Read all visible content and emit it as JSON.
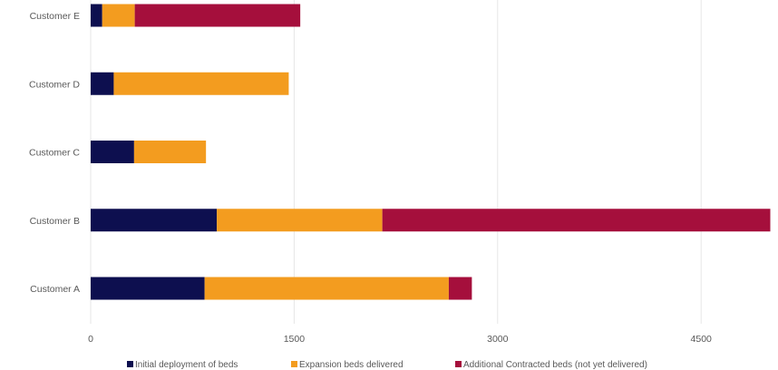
{
  "chart_data": {
    "type": "bar",
    "orientation": "horizontal",
    "stacked": true,
    "categories": [
      "Customer A",
      "Customer B",
      "Customer C",
      "Customer D",
      "Customer E"
    ],
    "series": [
      {
        "name": "Initial deployment of beds",
        "color": "#0d0f4f",
        "values": [
          840,
          930,
          320,
          170,
          85
        ]
      },
      {
        "name": "Expansion beds delivered",
        "color": "#f39c1f",
        "values": [
          1800,
          1220,
          530,
          1290,
          240
        ]
      },
      {
        "name": "Additional Contracted beds (not yet delivered)",
        "color": "#a50f3c",
        "values": [
          170,
          2860,
          0,
          0,
          1220
        ]
      }
    ],
    "xticks": [
      0,
      1500,
      3000,
      4500
    ],
    "xlim": [
      0,
      5020
    ],
    "grid": "vertical",
    "legend": "bottom"
  }
}
